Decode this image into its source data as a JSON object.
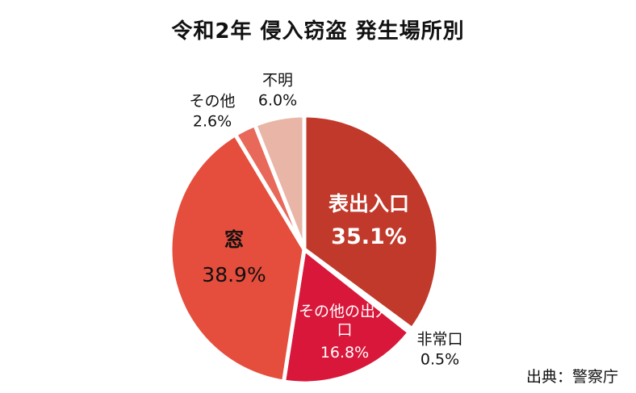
{
  "chart_data": {
    "type": "pie",
    "title": "令和2年 侵入窃盗 発生場所別",
    "slices": [
      {
        "label": "表出入口",
        "value": 35.1,
        "value_label": "35.1%",
        "color": "#c0392b"
      },
      {
        "label": "非常口",
        "value": 0.5,
        "value_label": "0.5%",
        "color": "#d35443"
      },
      {
        "label": "その他の出入口",
        "value": 16.8,
        "value_label": "16.8%",
        "color": "#d9173a"
      },
      {
        "label": "窓",
        "value": 38.9,
        "value_label": "38.9%",
        "color": "#e54d3c"
      },
      {
        "label": "その他",
        "value": 2.6,
        "value_label": "2.6%",
        "color": "#e8685a"
      },
      {
        "label": "不明",
        "value": 6.0,
        "value_label": "6.0%",
        "color": "#e8b5a6"
      }
    ]
  },
  "source": "出典：警察庁"
}
